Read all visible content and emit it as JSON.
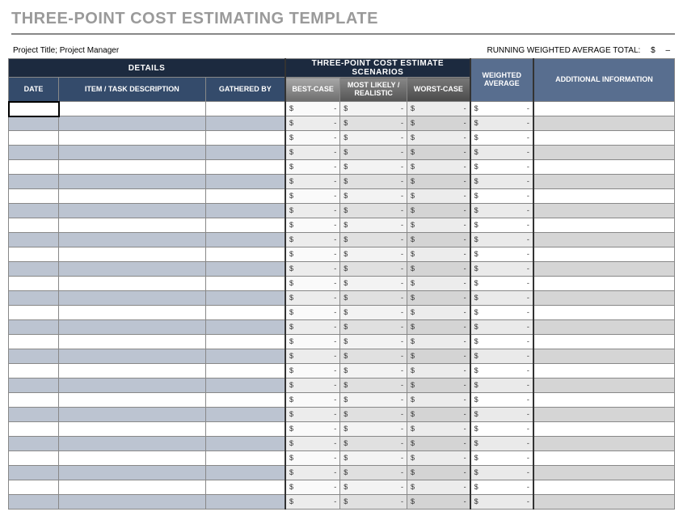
{
  "title": "THREE-POINT COST ESTIMATING TEMPLATE",
  "meta": {
    "project_label": "Project Title; Project Manager",
    "total_label": "RUNNING WEIGHTED AVERAGE TOTAL:",
    "total_symbol": "$",
    "total_value": "–"
  },
  "headers": {
    "group_details": "DETAILS",
    "group_scenarios": "THREE-POINT COST ESTIMATE SCENARIOS",
    "date": "DATE",
    "item": "ITEM / TASK DESCRIPTION",
    "gathered": "GATHERED BY",
    "best": "BEST-CASE",
    "most": "MOST LIKELY / REALISTIC",
    "worst": "WORST-CASE",
    "wavg": "WEIGHTED AVERAGE",
    "addl": "ADDITIONAL INFORMATION"
  },
  "currency_symbol": "$",
  "dash": "-",
  "row_count": 28,
  "colors": {
    "title_text": "#9a9a9a",
    "header_dark": "#1c2a3f",
    "header_blue": "#344b6b",
    "header_blue_light": "#586e8f",
    "stripe_blue": "#bcc4d1",
    "stripe_grey_best": "#ececec",
    "stripe_grey_most": "#e0e0e0",
    "stripe_grey_worst": "#d4d4d4",
    "stripe_grey_addl": "#d5d5d5",
    "border": "#888"
  }
}
